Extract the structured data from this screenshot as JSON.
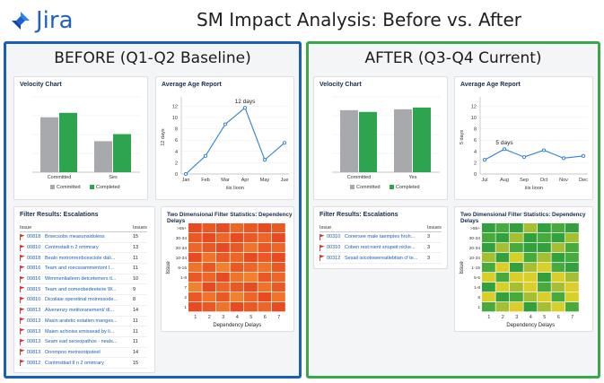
{
  "header": {
    "logo_text": "Jira",
    "title": "SM Impact Analysis: Before vs. After"
  },
  "colors": {
    "before_border": "#1a5fb4",
    "after_border": "#3aa84a",
    "committed": "#a7a9ad",
    "completed": "#2ea44f",
    "line": "#2f7fd0",
    "flag": "#d0312d"
  },
  "before": {
    "title": "BEFORE (Q1-Q2 Baseline)",
    "velocity": {
      "title": "Velocity Chart",
      "legend": [
        "Committed",
        "Completed"
      ]
    },
    "age": {
      "title": "Average Age Report",
      "ylabel": "12 days",
      "xlabel": "iiis Iioon",
      "annotation": "12 days"
    },
    "filter": {
      "title": "Filter Results: Escalations",
      "col_issue": "Issue",
      "col_issues": "Issues",
      "rows": [
        {
          "id": "00818",
          "summary": "Brsecsobs measunsidoless",
          "count": "15"
        },
        {
          "id": "00810",
          "summary": "Centmstaili:n 2 ommrary",
          "count": "13"
        },
        {
          "id": "00818",
          "summary": "Bealn motronreribcesciole dali...",
          "count": "11"
        },
        {
          "id": "00816",
          "summary": "Team and roecssammentont l...",
          "count": "11"
        },
        {
          "id": "00816",
          "summary": "Wimmenliaileen detcetemers tl...",
          "count": "10"
        },
        {
          "id": "00815",
          "summary": "Team and oomeobedeeteire W...",
          "count": "9"
        },
        {
          "id": "00810",
          "summary": "Dicoilaie operetinal moiressode...",
          "count": "8"
        },
        {
          "id": "00813",
          "summary": "Alvenenzy metitoranement/ dl...",
          "count": "14"
        },
        {
          "id": "00813",
          "summary": "Masin aratetic estatien manges...",
          "count": "11"
        },
        {
          "id": "00813",
          "summary": "Maien achioiss emissead by li...",
          "count": "11"
        },
        {
          "id": "00813",
          "summary": "Seam ead seceopathos - neals...",
          "count": "11"
        },
        {
          "id": "00813",
          "summary": "Ooompoo metnsrotpsteel",
          "count": "14"
        },
        {
          "id": "00812",
          "summary": "Contmsttiarl:ll n 2 ommrary",
          "count": "15"
        }
      ]
    },
    "heatmap": {
      "title": "Two Dimensional Filter Statistics: Dependency Delays",
      "ylabel": "Issue",
      "xlabel": "Dependency Delays"
    }
  },
  "after": {
    "title": "AFTER (Q3-Q4 Current)",
    "velocity": {
      "title": "Velocity Chart",
      "legend": [
        "Committed",
        "Completed"
      ]
    },
    "age": {
      "title": "Average Age Report",
      "ylabel": "5 days",
      "xlabel": "iiis Iioon",
      "annotation": "5 days"
    },
    "filter": {
      "title": "Filter Results: Escalations",
      "col_issue": "Issue",
      "col_issues": "Issues",
      "rows": [
        {
          "id": "00310",
          "summary": "Conersee male taempies hroh...",
          "count": "3"
        },
        {
          "id": "00310",
          "summary": "Coben rest:nient snopeit nicke...",
          "count": "3"
        },
        {
          "id": "00312",
          "summary": "Sesail isicotowereatlebtian cf te...",
          "count": "3"
        }
      ]
    },
    "heatmap": {
      "title": "Two Dimensional Filter Statistics: Dependency Delays",
      "ylabel": "Issue",
      "xlabel": "Dependency Delays"
    }
  },
  "chart_data": [
    {
      "id": "before-velocity",
      "type": "bar",
      "title": "Velocity Chart",
      "categories": [
        "Committed",
        "Ses"
      ],
      "series": [
        {
          "name": "Committed",
          "values": [
            62,
            35
          ]
        },
        {
          "name": "Completed",
          "values": [
            67,
            43
          ]
        }
      ],
      "ylim": [
        0,
        85
      ]
    },
    {
      "id": "before-age",
      "type": "line",
      "title": "Average Age Report",
      "categories": [
        "Jan",
        "Feb",
        "Mar",
        "Apr",
        "May",
        "Jue"
      ],
      "values": [
        0,
        3.2,
        8.8,
        11.7,
        2.5,
        5.5
      ],
      "yticks": [
        "0",
        "2",
        "4",
        "6",
        "8",
        "10",
        "12"
      ],
      "ylim": [
        0,
        13
      ],
      "ylabel": "12 days",
      "xlabel": "iiis Iioon"
    },
    {
      "id": "before-heatmap",
      "type": "heatmap",
      "title": "Two Dimensional Filter Statistics: Dependency Delays",
      "xticks": [
        "1",
        "2",
        "3",
        "4",
        "5",
        "6",
        "7"
      ],
      "yticks": [
        ">55+",
        "30-34",
        "20-34",
        "10-34",
        "6-15",
        "1-8",
        "7",
        "2",
        "1"
      ],
      "values": [
        [
          0.9,
          0.8,
          0.9,
          0.7,
          0.8,
          0.9,
          0.8
        ],
        [
          0.8,
          0.9,
          0.7,
          0.9,
          0.8,
          0.7,
          0.9
        ],
        [
          0.7,
          0.8,
          0.9,
          0.8,
          0.6,
          0.8,
          0.7
        ],
        [
          0.9,
          0.6,
          0.8,
          0.7,
          0.9,
          0.8,
          0.9
        ],
        [
          0.6,
          0.8,
          0.5,
          0.8,
          0.7,
          0.6,
          0.8
        ],
        [
          0.8,
          0.7,
          0.9,
          0.6,
          0.5,
          0.8,
          0.7
        ],
        [
          0.5,
          0.9,
          0.7,
          0.8,
          0.9,
          0.6,
          0.8
        ],
        [
          0.8,
          0.6,
          0.8,
          0.5,
          0.7,
          0.9,
          0.6
        ],
        [
          0.9,
          0.8,
          0.6,
          0.9,
          0.8,
          0.7,
          0.9
        ]
      ],
      "ylabel": "Issue",
      "xlabel": "Dependency Delays"
    },
    {
      "id": "after-velocity",
      "type": "bar",
      "title": "Velocity Chart",
      "categories": [
        "Committed",
        "Yes"
      ],
      "series": [
        {
          "name": "Committed",
          "values": [
            70,
            71
          ]
        },
        {
          "name": "Completed",
          "values": [
            68,
            73
          ]
        }
      ],
      "ylim": [
        0,
        85
      ]
    },
    {
      "id": "after-age",
      "type": "line",
      "title": "Average Age Report",
      "categories": [
        "Jul",
        "Aug",
        "Sep",
        "Oct",
        "Nov",
        "Dec"
      ],
      "values": [
        2.5,
        4.4,
        3.0,
        4.2,
        2.8,
        3.2
      ],
      "yticks": [
        "0",
        "2",
        "4",
        "6",
        "8",
        "10",
        "12"
      ],
      "ylim": [
        0,
        13
      ],
      "ylabel": "5 days",
      "xlabel": "iiis Iioon"
    },
    {
      "id": "after-heatmap",
      "type": "heatmap",
      "title": "Two Dimensional Filter Statistics: Dependency Delays",
      "xticks": [
        "1",
        "2",
        "3",
        "4",
        "5",
        "6",
        "7"
      ],
      "yticks": [
        ">55+",
        "30-34",
        "20-34",
        "10-34",
        "1-15",
        "5-5",
        "1-8",
        "8",
        "1"
      ],
      "values": [
        [
          0.1,
          0.2,
          0.1,
          0.3,
          0.1,
          0.2,
          0.1
        ],
        [
          0.2,
          0.1,
          0.3,
          0.1,
          0.2,
          0.1,
          0.3
        ],
        [
          0.1,
          0.3,
          0.2,
          0.1,
          0.1,
          0.3,
          0.2
        ],
        [
          0.3,
          0.1,
          0.4,
          0.2,
          0.3,
          0.1,
          0.2
        ],
        [
          0.2,
          0.5,
          0.1,
          0.3,
          0.4,
          0.2,
          0.1
        ],
        [
          0.4,
          0.2,
          0.5,
          0.4,
          0.1,
          0.5,
          0.3
        ],
        [
          0.1,
          0.4,
          0.3,
          0.5,
          0.2,
          0.3,
          0.5
        ],
        [
          0.5,
          0.1,
          0.2,
          0.3,
          0.5,
          0.2,
          0.4
        ],
        [
          0.2,
          0.3,
          0.5,
          0.1,
          0.3,
          0.4,
          0.2
        ]
      ],
      "ylabel": "Issue",
      "xlabel": "Dependency Delays"
    }
  ]
}
